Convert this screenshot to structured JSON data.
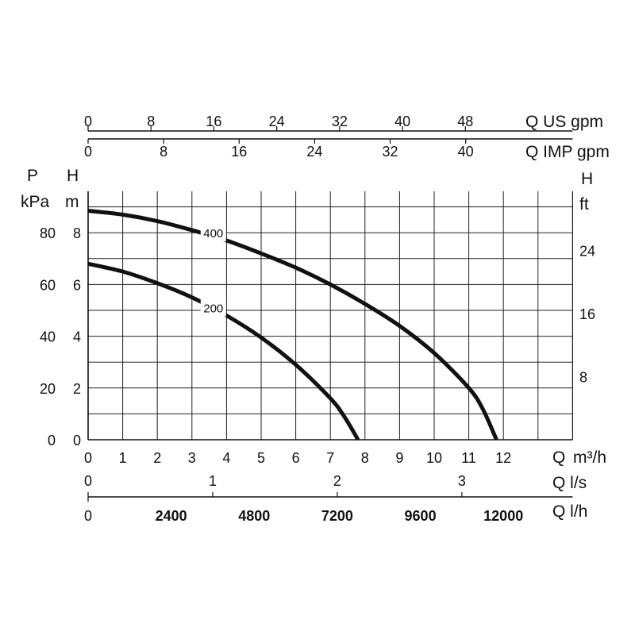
{
  "chart_data": {
    "type": "line",
    "title": "",
    "xlabel": "Q",
    "xunit_main": "m³/h",
    "ylabel_left_pressure": "P",
    "ylabel_left_pressure_unit": "kPa",
    "ylabel_left_head": "H",
    "ylabel_left_head_unit": "m",
    "ylabel_right": "H",
    "ylabel_right_unit": "ft",
    "xlim": [
      0,
      14
    ],
    "ylim": [
      0,
      10
    ],
    "grid": true,
    "x_ticks_m3h": [
      "0",
      "1",
      "2",
      "3",
      "4",
      "5",
      "6",
      "7",
      "8",
      "9",
      "10",
      "11",
      "12"
    ],
    "y_ticks_head_m": [
      "0",
      "2",
      "4",
      "6",
      "8"
    ],
    "y_ticks_pressure_kpa": [
      "0",
      "20",
      "40",
      "60",
      "80"
    ],
    "y_ticks_head_ft": [
      "8",
      "16",
      "24"
    ],
    "series": [
      {
        "name": "400",
        "x": [
          0,
          1,
          2,
          3,
          4,
          5,
          6,
          7,
          8,
          9,
          10,
          11,
          11.4,
          11.8
        ],
        "y": [
          8.85,
          8.7,
          8.45,
          8.1,
          7.7,
          7.2,
          6.65,
          6.0,
          5.25,
          4.4,
          3.35,
          2.0,
          1.2,
          0
        ]
      },
      {
        "name": "200",
        "x": [
          0,
          1,
          2,
          3,
          4,
          5,
          6,
          7,
          7.4,
          7.8
        ],
        "y": [
          6.8,
          6.5,
          6.05,
          5.5,
          4.8,
          3.95,
          2.9,
          1.6,
          0.9,
          0
        ]
      }
    ],
    "secondary_axes": {
      "us_gpm": {
        "label": "Q US gpm",
        "ticks": [
          "0",
          "8",
          "16",
          "24",
          "32",
          "40",
          "48"
        ]
      },
      "imp_gpm": {
        "label": "Q IMP gpm",
        "ticks": [
          "0",
          "8",
          "16",
          "24",
          "32",
          "40"
        ]
      },
      "l_s": {
        "label": "Q l/s",
        "ticks": [
          "0",
          "1",
          "2",
          "3"
        ]
      },
      "l_h": {
        "label": "Q l/h",
        "ticks": [
          "0",
          "2400",
          "4800",
          "7200",
          "9600",
          "12000"
        ]
      }
    }
  }
}
